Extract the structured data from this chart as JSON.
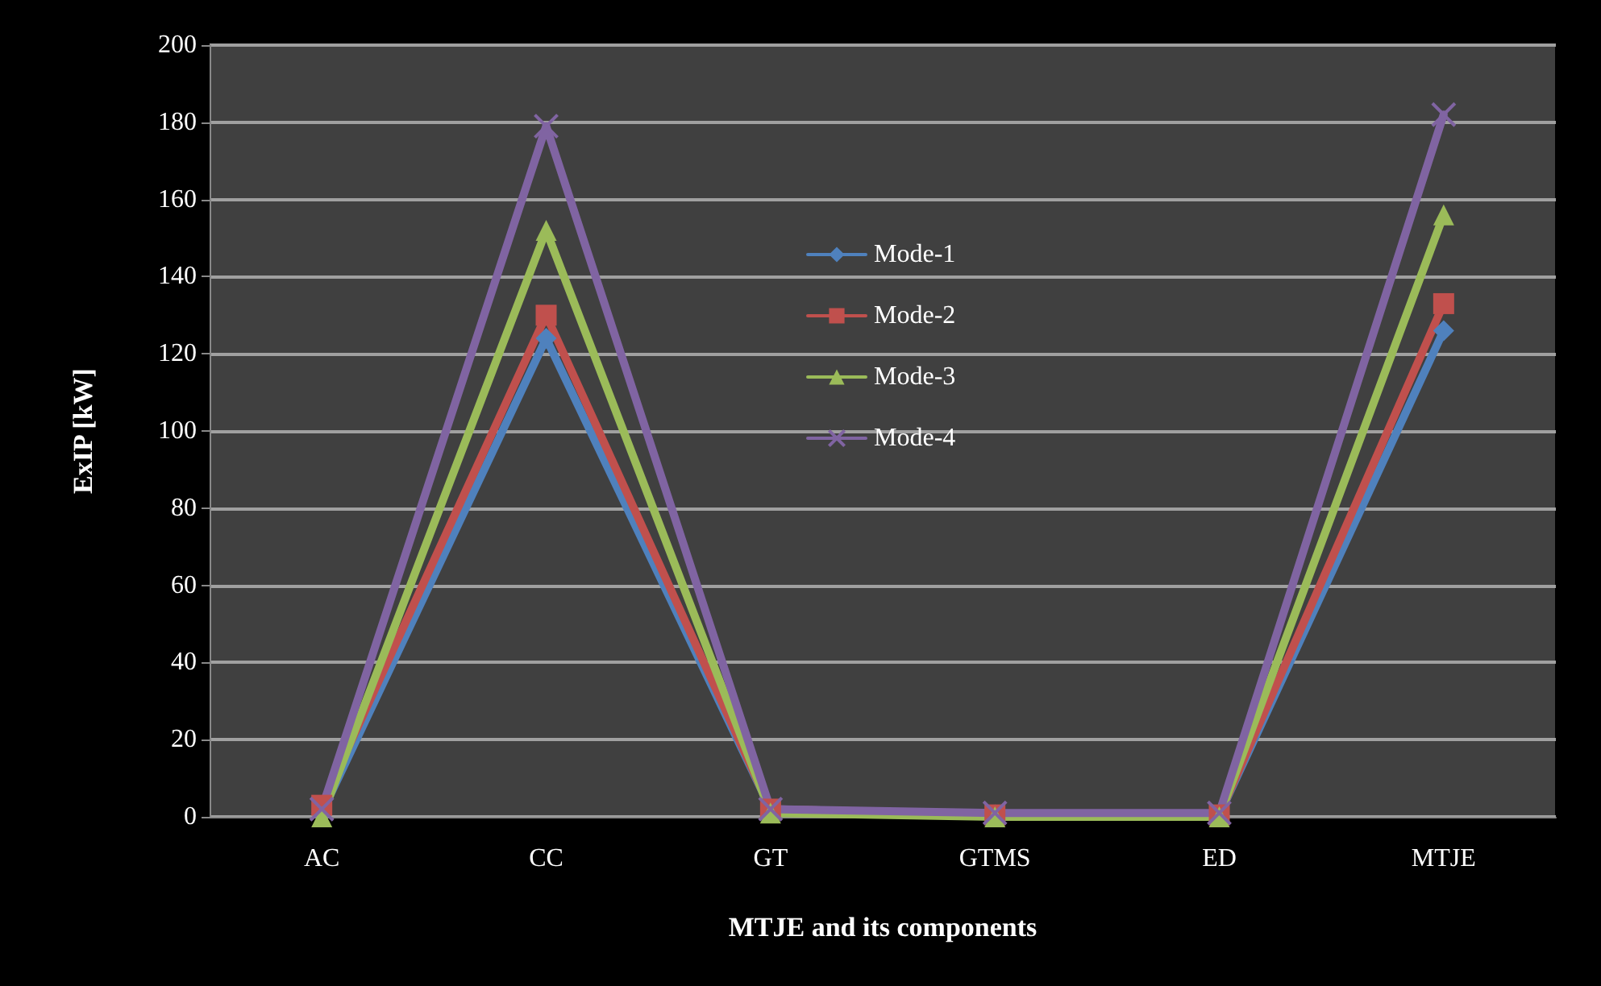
{
  "chart_data": {
    "type": "line",
    "xlabel": "MTJE and its components",
    "ylabel": "ExIP [kW]",
    "categories": [
      "AC",
      "CC",
      "GT",
      "GTMS",
      "ED",
      "MTJE"
    ],
    "series": [
      {
        "name": "Mode-1",
        "color": "#4f81bd",
        "marker": "diamond",
        "values": [
          1,
          124,
          2,
          0.5,
          0.5,
          126
        ]
      },
      {
        "name": "Mode-2",
        "color": "#c0504d",
        "marker": "square",
        "values": [
          3,
          130,
          2,
          0.5,
          0.5,
          133
        ]
      },
      {
        "name": "Mode-3",
        "color": "#9bbb59",
        "marker": "triangle",
        "values": [
          0,
          152,
          1,
          0,
          0,
          156
        ]
      },
      {
        "name": "Mode-4",
        "color": "#8064a2",
        "marker": "cross",
        "values": [
          2,
          179,
          2,
          1,
          1,
          182
        ]
      }
    ],
    "ylim": [
      0,
      200
    ],
    "yticks": [
      0,
      20,
      40,
      60,
      80,
      100,
      120,
      140,
      160,
      180,
      200
    ],
    "grid": "y",
    "legend": "center"
  }
}
